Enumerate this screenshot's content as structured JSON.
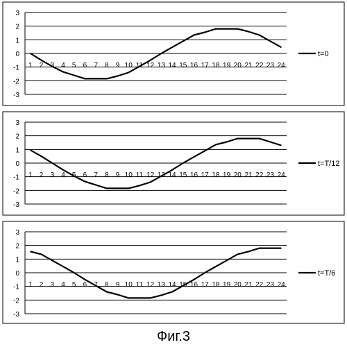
{
  "caption": "Фиг.3",
  "chart_data": [
    {
      "type": "line",
      "categories": [
        "1",
        "2",
        "3",
        "4",
        "5",
        "6",
        "7",
        "8",
        "9",
        "10",
        "11",
        "12",
        "13",
        "14",
        "15",
        "16",
        "17",
        "18",
        "19",
        "20",
        "21",
        "22",
        "23",
        "24"
      ],
      "ylim": [
        -3,
        3
      ],
      "yticks": [
        -3,
        -2,
        -1,
        0,
        1,
        2,
        3
      ],
      "grid": true,
      "legend_position": "right",
      "series": [
        {
          "name": "t=0",
          "values": [
            0,
            -0.5,
            -0.95,
            -1.35,
            -1.6,
            -1.85,
            -1.85,
            -1.85,
            -1.65,
            -1.4,
            -0.95,
            -0.5,
            0,
            0.45,
            0.9,
            1.35,
            1.55,
            1.8,
            1.8,
            1.8,
            1.6,
            1.35,
            0.9,
            0.45
          ]
        }
      ]
    },
    {
      "type": "line",
      "categories": [
        "1",
        "2",
        "3",
        "4",
        "5",
        "6",
        "7",
        "8",
        "9",
        "10",
        "11",
        "12",
        "13",
        "14",
        "15",
        "16",
        "17",
        "18",
        "19",
        "20",
        "21",
        "22",
        "23",
        "24"
      ],
      "ylim": [
        -3,
        3
      ],
      "yticks": [
        -3,
        -2,
        -1,
        0,
        1,
        2,
        3
      ],
      "grid": true,
      "legend_position": "right",
      "series": [
        {
          "name": "t=T/12",
          "values": [
            0.95,
            0.5,
            0,
            -0.5,
            -0.95,
            -1.35,
            -1.6,
            -1.85,
            -1.85,
            -1.85,
            -1.65,
            -1.4,
            -0.95,
            -0.5,
            0,
            0.45,
            0.9,
            1.35,
            1.55,
            1.8,
            1.8,
            1.8,
            1.55,
            1.3
          ]
        }
      ]
    },
    {
      "type": "line",
      "categories": [
        "1",
        "2",
        "3",
        "4",
        "5",
        "6",
        "7",
        "8",
        "9",
        "10",
        "11",
        "12",
        "13",
        "14",
        "15",
        "16",
        "17",
        "18",
        "19",
        "20",
        "21",
        "22",
        "23",
        "24"
      ],
      "ylim": [
        -3,
        3
      ],
      "yticks": [
        -3,
        -2,
        -1,
        0,
        1,
        2,
        3
      ],
      "grid": true,
      "legend_position": "right",
      "series": [
        {
          "name": "t=T/6",
          "values": [
            1.55,
            1.35,
            0.9,
            0.45,
            0,
            -0.5,
            -0.95,
            -1.4,
            -1.6,
            -1.85,
            -1.85,
            -1.85,
            -1.65,
            -1.4,
            -0.95,
            -0.5,
            0,
            0.45,
            0.9,
            1.35,
            1.55,
            1.8,
            1.8,
            1.8
          ]
        }
      ]
    }
  ]
}
